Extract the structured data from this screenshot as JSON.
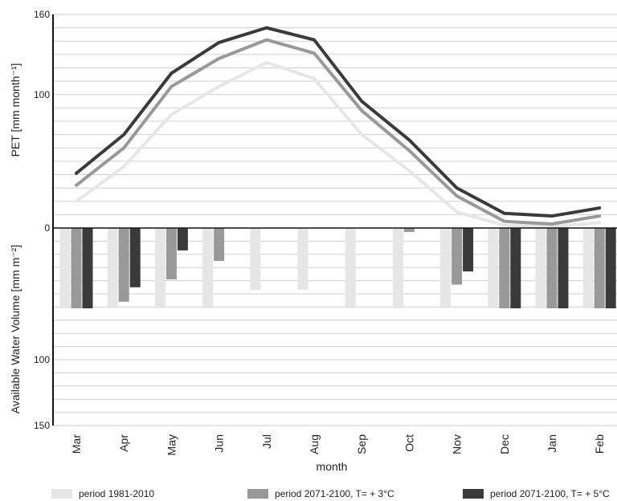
{
  "chart_data": {
    "type": "line+bar",
    "xlabel": "month",
    "categories": [
      "Mar",
      "Apr",
      "May",
      "Jun",
      "Jul",
      "Aug",
      "Sep",
      "Oct",
      "Nov",
      "Dec",
      "Jan",
      "Feb"
    ],
    "top_panel": {
      "ylabel": "PET [mm month⁻¹]",
      "ylim": [
        0,
        160
      ],
      "yticks": [
        "0",
        "100",
        "160"
      ],
      "series": [
        {
          "name": "period 1981-2010",
          "color": "#e6e6e6",
          "values": [
            20,
            46,
            85,
            106,
            124,
            112,
            70,
            43,
            12,
            2,
            1,
            4
          ]
        },
        {
          "name": "period 2071-2100, T= + 3°C",
          "color": "#999999",
          "values": [
            32,
            60,
            106,
            127,
            141,
            131,
            88,
            58,
            24,
            5,
            3,
            9
          ]
        },
        {
          "name": "period 2071-2100, T= + 5°C",
          "color": "#3a3a3a",
          "values": [
            41,
            70,
            116,
            139,
            150,
            141,
            95,
            66,
            30,
            11,
            9,
            15
          ]
        }
      ]
    },
    "bottom_panel": {
      "ylabel": "Available Water Volume [mm m⁻²]",
      "ylim": [
        0,
        150
      ],
      "yticks": [
        "0",
        "100",
        "150"
      ],
      "series": [
        {
          "name": "period 1981-2010",
          "color": "#e6e6e6",
          "values": [
            61,
            61,
            61,
            61,
            47,
            47,
            61,
            61,
            61,
            61,
            61,
            61
          ]
        },
        {
          "name": "period 2071-2100, T= + 3°C",
          "color": "#999999",
          "values": [
            61,
            56,
            39,
            25,
            0,
            0,
            0,
            3,
            43,
            61,
            61,
            61
          ]
        },
        {
          "name": "period 2071-2100, T= + 5°C",
          "color": "#3a3a3a",
          "values": [
            61,
            45,
            17,
            0,
            0,
            0,
            0,
            0,
            33,
            61,
            61,
            61
          ]
        }
      ]
    }
  },
  "legend": [
    {
      "label": "period 1981-2010",
      "color": "#e6e6e6"
    },
    {
      "label": "period 2071-2100, T= + 3°C",
      "color": "#999999"
    },
    {
      "label": "period 2071-2100, T= + 5°C",
      "color": "#3a3a3a"
    }
  ]
}
